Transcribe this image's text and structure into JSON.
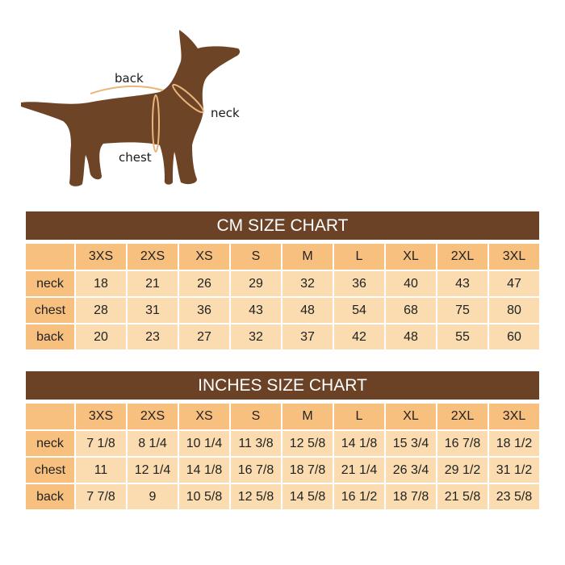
{
  "diagram": {
    "labels": {
      "back": "back",
      "neck": "neck",
      "chest": "chest"
    },
    "colors": {
      "dog": "#6e4427",
      "measure_line": "#e9b57a"
    }
  },
  "cm_chart": {
    "title": "CM SIZE CHART",
    "sizes": [
      "3XS",
      "2XS",
      "XS",
      "S",
      "M",
      "L",
      "XL",
      "2XL",
      "3XL"
    ],
    "rows": [
      {
        "label": "neck",
        "values": [
          "18",
          "21",
          "26",
          "29",
          "32",
          "36",
          "40",
          "43",
          "47"
        ]
      },
      {
        "label": "chest",
        "values": [
          "28",
          "31",
          "36",
          "43",
          "48",
          "54",
          "68",
          "75",
          "80"
        ]
      },
      {
        "label": "back",
        "values": [
          "20",
          "23",
          "27",
          "32",
          "37",
          "42",
          "48",
          "55",
          "60"
        ]
      }
    ]
  },
  "inches_chart": {
    "title": "INCHES SIZE CHART",
    "sizes": [
      "3XS",
      "2XS",
      "XS",
      "S",
      "M",
      "L",
      "XL",
      "2XL",
      "3XL"
    ],
    "rows": [
      {
        "label": "neck",
        "values": [
          "7 1/8",
          "8 1/4",
          "10 1/4",
          "11 3/8",
          "12 5/8",
          "14 1/8",
          "15 3/4",
          "16 7/8",
          "18 1/2"
        ]
      },
      {
        "label": "chest",
        "values": [
          "11",
          "12 1/4",
          "14 1/8",
          "16 7/8",
          "18 7/8",
          "21 1/4",
          "26 3/4",
          "29 1/2",
          "31 1/2"
        ]
      },
      {
        "label": "back",
        "values": [
          "7 7/8",
          "9",
          "10 5/8",
          "12 5/8",
          "14 5/8",
          "16 1/2",
          "18 7/8",
          "21 5/8",
          "23 5/8"
        ]
      }
    ]
  },
  "colors": {
    "header": "#6b4226",
    "size_row": "#f7c07f",
    "cell": "#fbdcb0"
  }
}
